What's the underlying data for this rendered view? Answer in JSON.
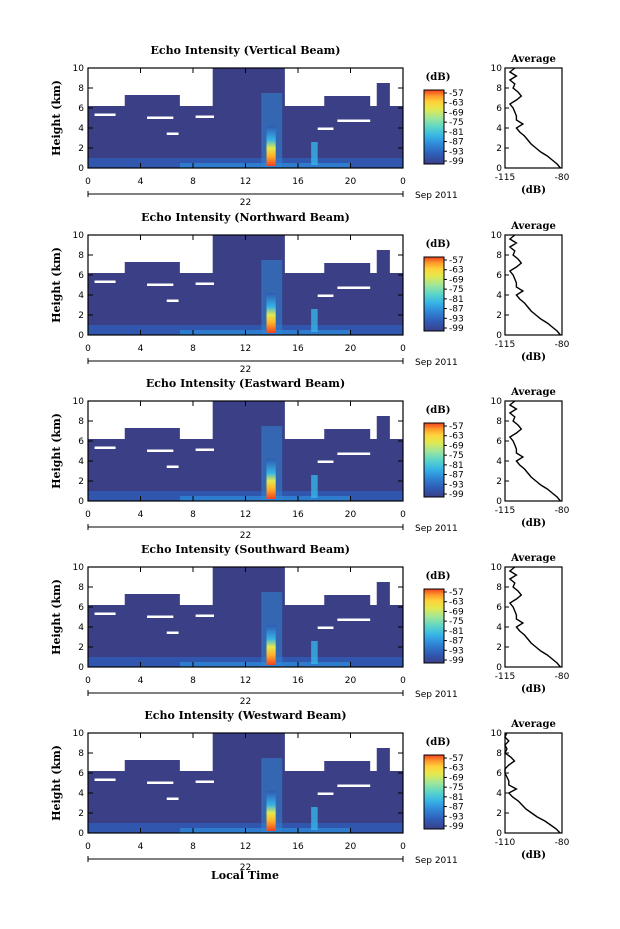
{
  "colors": {
    "background": "#3a3f86",
    "colormap": [
      "#3b3f87",
      "#2f5ab4",
      "#2f86d6",
      "#37b4e6",
      "#5cd6c8",
      "#9ee69a",
      "#e3e94f",
      "#ffd23a",
      "#ff9a2a",
      "#f04020"
    ]
  },
  "chart_data": [
    {
      "type": "heatmap",
      "title": "Echo Intensity (Vertical Beam)",
      "ylabel": "Height (km)",
      "xlim": [
        0,
        24
      ],
      "ylim": [
        0,
        10
      ],
      "x_ticks": [
        "0",
        "4",
        "8",
        "12",
        "16",
        "20",
        "0"
      ],
      "y_ticks": [
        "0",
        "2",
        "4",
        "6",
        "8",
        "10"
      ],
      "date_day": "22",
      "date_month_year": "Sep 2011",
      "colorbar": {
        "label": "(dB)",
        "ticks": [
          "-57",
          "-63",
          "-69",
          "-75",
          "-81",
          "-87",
          "-93",
          "-99"
        ]
      },
      "average": {
        "title": "Average",
        "xlabel": "(dB)",
        "xlim_labels": [
          "-115",
          "-80"
        ]
      }
    },
    {
      "type": "heatmap",
      "title": "Echo Intensity (Northward Beam)",
      "ylabel": "Height (km)",
      "xlim": [
        0,
        24
      ],
      "ylim": [
        0,
        10
      ],
      "x_ticks": [
        "0",
        "4",
        "8",
        "12",
        "16",
        "20",
        "0"
      ],
      "y_ticks": [
        "0",
        "2",
        "4",
        "6",
        "8",
        "10"
      ],
      "date_day": "22",
      "date_month_year": "Sep 2011",
      "colorbar": {
        "label": "(dB)",
        "ticks": [
          "-57",
          "-63",
          "-69",
          "-75",
          "-81",
          "-87",
          "-93",
          "-99"
        ]
      },
      "average": {
        "title": "Average",
        "xlabel": "(dB)",
        "xlim_labels": [
          "-115",
          "-80"
        ]
      }
    },
    {
      "type": "heatmap",
      "title": "Echo Intensity (Eastward Beam)",
      "ylabel": "Height (km)",
      "xlim": [
        0,
        24
      ],
      "ylim": [
        0,
        10
      ],
      "x_ticks": [
        "0",
        "4",
        "8",
        "12",
        "16",
        "20",
        "0"
      ],
      "y_ticks": [
        "0",
        "2",
        "4",
        "6",
        "8",
        "10"
      ],
      "date_day": "22",
      "date_month_year": "Sep 2011",
      "colorbar": {
        "label": "(dB)",
        "ticks": [
          "-57",
          "-63",
          "-69",
          "-75",
          "-81",
          "-87",
          "-93",
          "-99"
        ]
      },
      "average": {
        "title": "Average",
        "xlabel": "(dB)",
        "xlim_labels": [
          "-115",
          "-80"
        ]
      }
    },
    {
      "type": "heatmap",
      "title": "Echo Intensity (Southward Beam)",
      "ylabel": "Height (km)",
      "xlim": [
        0,
        24
      ],
      "ylim": [
        0,
        10
      ],
      "x_ticks": [
        "0",
        "4",
        "8",
        "12",
        "16",
        "20",
        "0"
      ],
      "y_ticks": [
        "0",
        "2",
        "4",
        "6",
        "8",
        "10"
      ],
      "date_day": "22",
      "date_month_year": "Sep 2011",
      "colorbar": {
        "label": "(dB)",
        "ticks": [
          "-57",
          "-63",
          "-69",
          "-75",
          "-81",
          "-87",
          "-93",
          "-99"
        ]
      },
      "average": {
        "title": "Average",
        "xlabel": "(dB)",
        "xlim_labels": [
          "-115",
          "-80"
        ]
      }
    },
    {
      "type": "heatmap",
      "title": "Echo Intensity (Westward Beam)",
      "ylabel": "Height (km)",
      "xlim": [
        0,
        24
      ],
      "ylim": [
        0,
        10
      ],
      "x_ticks": [
        "0",
        "4",
        "8",
        "12",
        "16",
        "20",
        "0"
      ],
      "y_ticks": [
        "0",
        "2",
        "4",
        "6",
        "8",
        "10"
      ],
      "date_day": "22",
      "date_month_year": "Sep 2011",
      "colorbar": {
        "label": "(dB)",
        "ticks": [
          "-57",
          "-63",
          "-69",
          "-75",
          "-81",
          "-87",
          "-93",
          "-99"
        ]
      },
      "average": {
        "title": "Average",
        "xlabel": "(dB)",
        "xlim_labels": [
          "-110",
          "-80"
        ]
      }
    }
  ],
  "average_profile": {
    "height_km": [
      0,
      0.4,
      0.8,
      1.2,
      1.6,
      2.0,
      2.4,
      2.8,
      3.2,
      3.6,
      4.0,
      4.4,
      4.8,
      5.2,
      5.6,
      6.0,
      6.4,
      6.8,
      7.2,
      7.6,
      8.0,
      8.4,
      8.8,
      9.2,
      9.6,
      10
    ],
    "db": [
      -81,
      -83,
      -86,
      -89,
      -93,
      -96,
      -99,
      -101,
      -103,
      -106,
      -108,
      -104,
      -108,
      -108,
      -109,
      -110,
      -112,
      -108,
      -105,
      -107,
      -110,
      -109,
      -112,
      -108,
      -112,
      -109
    ]
  },
  "footer": {
    "xlabel": "Local Time"
  }
}
